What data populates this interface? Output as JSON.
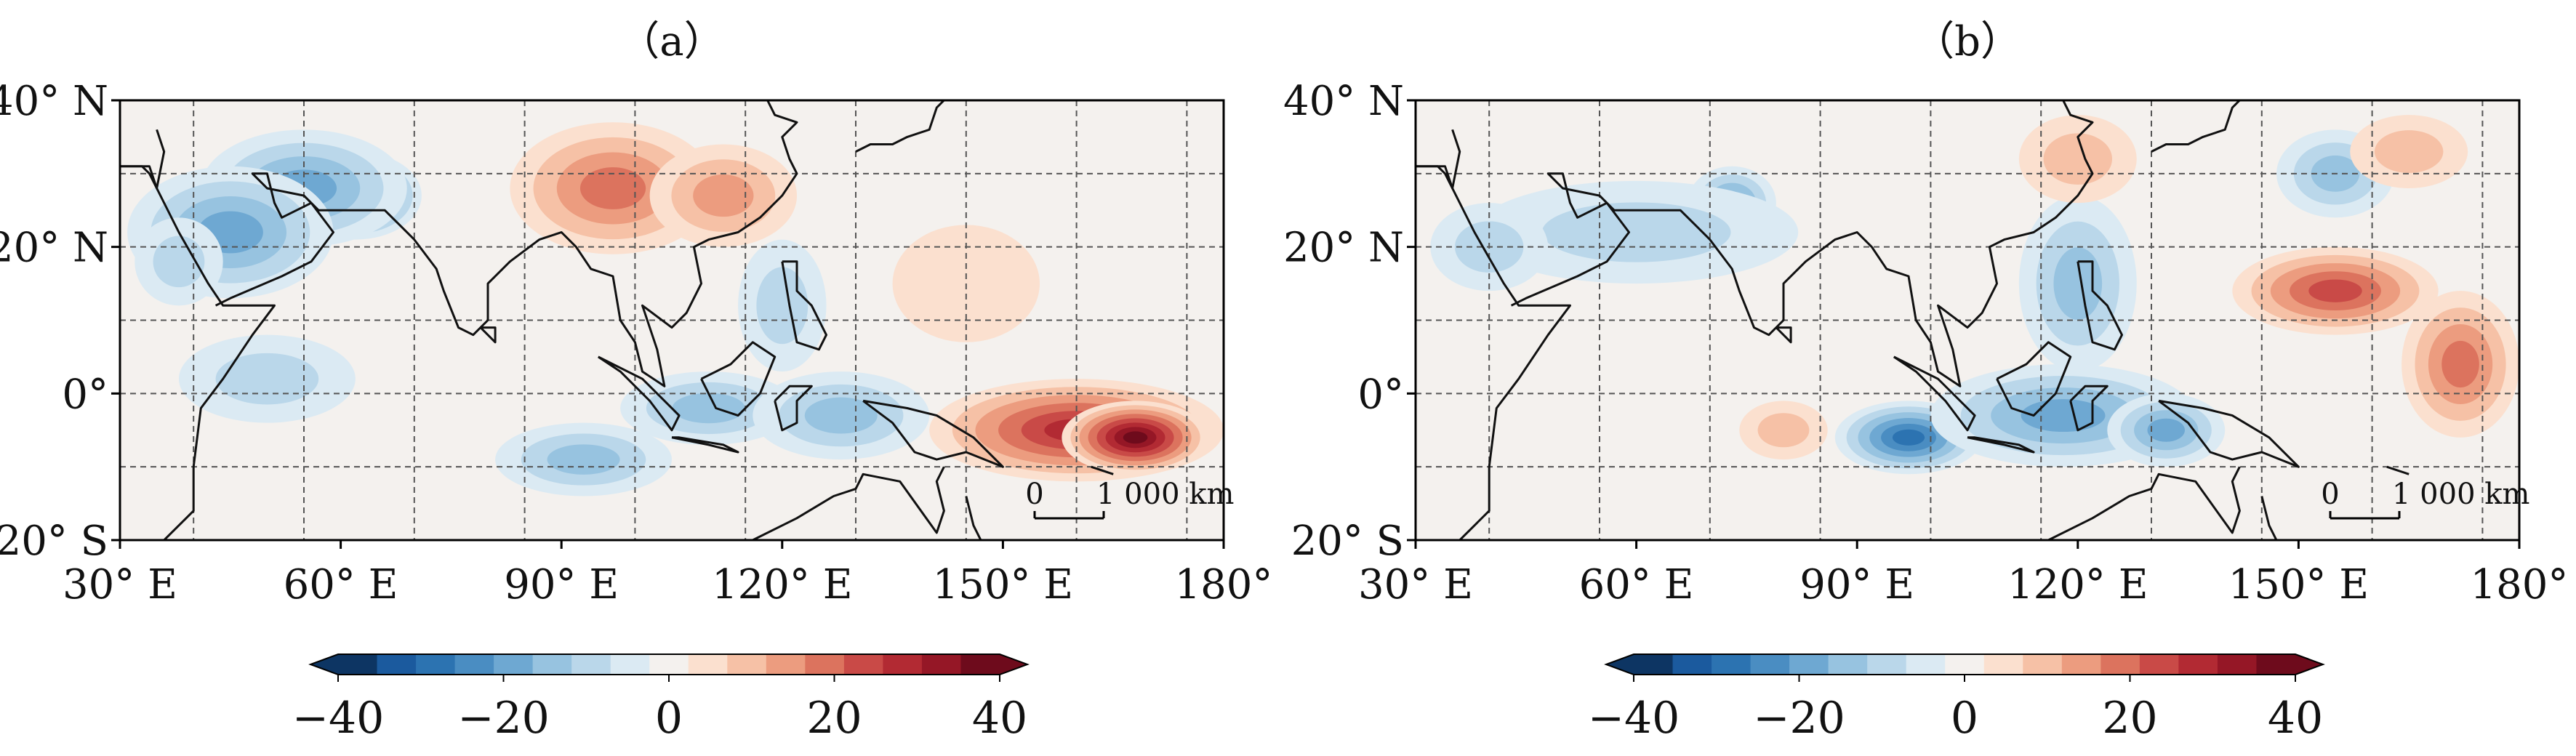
{
  "panels": [
    {
      "id": "a",
      "label": "（a）",
      "blobs": [
        {
          "lon": 62,
          "lat": 27,
          "rx": 9,
          "ry": 6,
          "value": -36
        },
        {
          "lon": 55,
          "lat": 28,
          "rx": 14,
          "ry": 8,
          "value": -22
        },
        {
          "lon": 45,
          "lat": 22,
          "rx": 14,
          "ry": 9,
          "value": -20
        },
        {
          "lon": 38,
          "lat": 18,
          "rx": 6,
          "ry": 6,
          "value": -12
        },
        {
          "lon": 50,
          "lat": 2,
          "rx": 12,
          "ry": 6,
          "value": -8
        },
        {
          "lon": 93,
          "lat": -9,
          "rx": 12,
          "ry": 5,
          "value": -14
        },
        {
          "lon": 110,
          "lat": -2,
          "rx": 12,
          "ry": 5,
          "value": -14
        },
        {
          "lon": 128,
          "lat": -3,
          "rx": 12,
          "ry": 6,
          "value": -16
        },
        {
          "lon": 120,
          "lat": 12,
          "rx": 6,
          "ry": 9,
          "value": -8
        },
        {
          "lon": 97,
          "lat": 28,
          "rx": 14,
          "ry": 9,
          "value": 20
        },
        {
          "lon": 112,
          "lat": 27,
          "rx": 10,
          "ry": 7,
          "value": 16
        },
        {
          "lon": 160,
          "lat": -5,
          "rx": 20,
          "ry": 7,
          "value": 30
        },
        {
          "lon": 168,
          "lat": -6,
          "rx": 10,
          "ry": 5,
          "value": 40
        },
        {
          "lon": 145,
          "lat": 15,
          "rx": 10,
          "ry": 8,
          "value": 6
        }
      ]
    },
    {
      "id": "b",
      "label": "（b）",
      "blobs": [
        {
          "lon": 73,
          "lat": 26,
          "rx": 6,
          "ry": 5,
          "value": -18
        },
        {
          "lon": 60,
          "lat": 22,
          "rx": 22,
          "ry": 7,
          "value": -12
        },
        {
          "lon": 40,
          "lat": 20,
          "rx": 8,
          "ry": 6,
          "value": -10
        },
        {
          "lon": 97,
          "lat": -6,
          "rx": 10,
          "ry": 5,
          "value": -28
        },
        {
          "lon": 118,
          "lat": -3,
          "rx": 18,
          "ry": 7,
          "value": -20
        },
        {
          "lon": 120,
          "lat": 15,
          "rx": 8,
          "ry": 12,
          "value": -16
        },
        {
          "lon": 132,
          "lat": -5,
          "rx": 8,
          "ry": 5,
          "value": -18
        },
        {
          "lon": 155,
          "lat": 30,
          "rx": 8,
          "ry": 6,
          "value": -16
        },
        {
          "lon": 155,
          "lat": 14,
          "rx": 14,
          "ry": 6,
          "value": 24
        },
        {
          "lon": 172,
          "lat": 4,
          "rx": 8,
          "ry": 10,
          "value": 18
        },
        {
          "lon": 120,
          "lat": 32,
          "rx": 8,
          "ry": 6,
          "value": 12
        },
        {
          "lon": 80,
          "lat": -5,
          "rx": 6,
          "ry": 4,
          "value": 10
        },
        {
          "lon": 165,
          "lat": 33,
          "rx": 8,
          "ry": 5,
          "value": 8
        }
      ]
    }
  ],
  "map": {
    "lon_range": [
      30,
      180
    ],
    "lat_range": [
      -20,
      40
    ],
    "x_tick_values": [
      30,
      60,
      90,
      120,
      150,
      180
    ],
    "x_tick_labels": [
      "30° E",
      "60° E",
      "90° E",
      "120° E",
      "150° E",
      "180°"
    ],
    "y_tick_values": [
      40,
      20,
      0,
      -20
    ],
    "y_tick_labels": [
      "40° N",
      "20° N",
      "0°",
      "20° S"
    ],
    "grid": "dashed",
    "scale_bar": {
      "start_label": "0",
      "end_label": "1 000 km"
    }
  },
  "colorbar": {
    "range": [
      -40,
      40
    ],
    "step": 5,
    "extend": "both",
    "ticks": [
      -40,
      -20,
      0,
      20,
      40
    ],
    "tick_labels": [
      "−40",
      "−20",
      "0",
      "20",
      "40"
    ]
  },
  "colors": {
    "scale": [
      "#0d3563",
      "#1b5a9e",
      "#2c73b1",
      "#4a8dc2",
      "#6ea8d2",
      "#97c3e0",
      "#bad7ea",
      "#dbeaf3",
      "#f4f1ee",
      "#fbe0cf",
      "#f6c1a6",
      "#ec9c7f",
      "#dc735e",
      "#c94a47",
      "#b22a33",
      "#951726",
      "#6e0b1c"
    ]
  }
}
